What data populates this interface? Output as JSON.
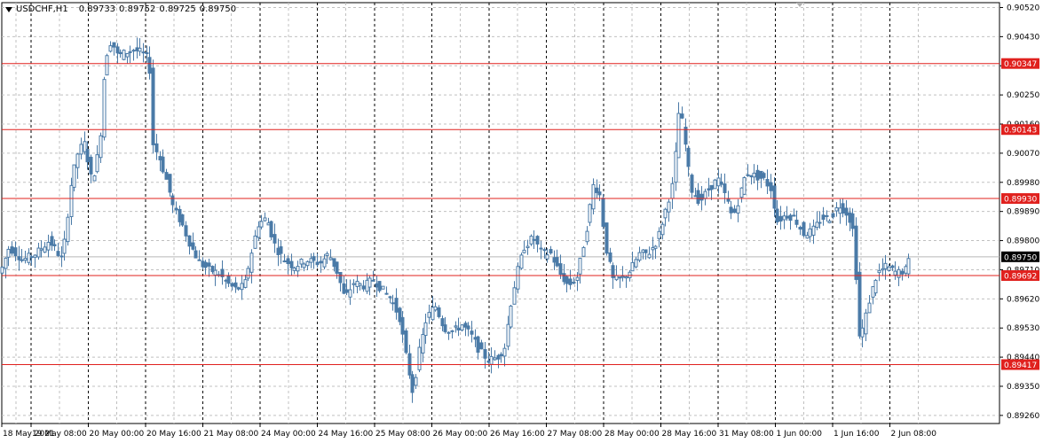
{
  "header": {
    "symbol": "USDCHF,H1",
    "open": "0.89733",
    "high": "0.89752",
    "low": "0.89725",
    "close": "0.89750"
  },
  "colors": {
    "candle": "#4a7aa7",
    "level_line": "#e0211e",
    "level_label_bg": "#e0211e",
    "current_price_bg": "#000000",
    "grid": "#c0c0c0",
    "vgrid": "#000000"
  },
  "chart_data": {
    "type": "candlestick",
    "ylim": [
      0.89235,
      0.90535
    ],
    "y_ticks": [
      "0.90520",
      "0.90430",
      "0.90340",
      "0.90250",
      "0.90160",
      "0.90070",
      "0.89980",
      "0.89890",
      "0.89800",
      "0.89710",
      "0.89620",
      "0.89530",
      "0.89440",
      "0.89350",
      "0.89260"
    ],
    "x_ticks": [
      "18 May 2021",
      "19 May 08:00",
      "20 May 00:00",
      "20 May 16:00",
      "21 May 08:00",
      "24 May 00:00",
      "24 May 16:00",
      "25 May 08:00",
      "26 May 00:00",
      "26 May 16:00",
      "27 May 08:00",
      "28 May 00:00",
      "28 May 16:00",
      "31 May 08:00",
      "1 Jun 00:00",
      "1 Jun 16:00",
      "2 Jun 08:00"
    ],
    "levels": [
      "0.90347",
      "0.90143",
      "0.89930",
      "0.89692",
      "0.89417"
    ],
    "current_price": "0.89750",
    "close_path": [
      [
        0,
        0.897
      ],
      [
        10,
        0.8978
      ],
      [
        25,
        0.8974
      ],
      [
        40,
        0.8976
      ],
      [
        55,
        0.898
      ],
      [
        70,
        0.8974
      ],
      [
        80,
        0.8998
      ],
      [
        88,
        0.9008
      ],
      [
        95,
        0.901
      ],
      [
        103,
        0.8998
      ],
      [
        112,
        0.9009
      ],
      [
        118,
        0.9036
      ],
      [
        125,
        0.9042
      ],
      [
        132,
        0.9037
      ],
      [
        140,
        0.9038
      ],
      [
        150,
        0.9039
      ],
      [
        160,
        0.9038
      ],
      [
        168,
        0.9036
      ],
      [
        172,
        0.901
      ],
      [
        180,
        0.9005
      ],
      [
        188,
        0.8998
      ],
      [
        195,
        0.899
      ],
      [
        205,
        0.8985
      ],
      [
        215,
        0.8978
      ],
      [
        225,
        0.8973
      ],
      [
        235,
        0.8971
      ],
      [
        245,
        0.897
      ],
      [
        255,
        0.8967
      ],
      [
        265,
        0.8965
      ],
      [
        275,
        0.8966
      ],
      [
        282,
        0.8975
      ],
      [
        290,
        0.8985
      ],
      [
        300,
        0.8987
      ],
      [
        310,
        0.8978
      ],
      [
        320,
        0.8974
      ],
      [
        330,
        0.8972
      ],
      [
        345,
        0.8974
      ],
      [
        360,
        0.8973
      ],
      [
        370,
        0.8976
      ],
      [
        380,
        0.897
      ],
      [
        388,
        0.8962
      ],
      [
        398,
        0.8967
      ],
      [
        410,
        0.8966
      ],
      [
        420,
        0.8968
      ],
      [
        430,
        0.8965
      ],
      [
        440,
        0.8962
      ],
      [
        450,
        0.8956
      ],
      [
        458,
        0.8943
      ],
      [
        465,
        0.8933
      ],
      [
        472,
        0.8946
      ],
      [
        480,
        0.8956
      ],
      [
        490,
        0.896
      ],
      [
        500,
        0.8953
      ],
      [
        510,
        0.8952
      ],
      [
        520,
        0.8954
      ],
      [
        530,
        0.8951
      ],
      [
        540,
        0.8946
      ],
      [
        550,
        0.8943
      ],
      [
        560,
        0.8944
      ],
      [
        568,
        0.8947
      ],
      [
        575,
        0.896
      ],
      [
        582,
        0.897
      ],
      [
        590,
        0.8978
      ],
      [
        600,
        0.8981
      ],
      [
        610,
        0.8976
      ],
      [
        620,
        0.8976
      ],
      [
        630,
        0.897
      ],
      [
        640,
        0.8966
      ],
      [
        650,
        0.8969
      ],
      [
        660,
        0.8983
      ],
      [
        668,
        0.8997
      ],
      [
        675,
        0.8995
      ],
      [
        682,
        0.8978
      ],
      [
        690,
        0.8968
      ],
      [
        700,
        0.8968
      ],
      [
        710,
        0.8971
      ],
      [
        720,
        0.8976
      ],
      [
        730,
        0.8976
      ],
      [
        740,
        0.898
      ],
      [
        750,
        0.899
      ],
      [
        758,
        0.8998
      ],
      [
        765,
        0.9022
      ],
      [
        770,
        0.9013
      ],
      [
        778,
        0.8996
      ],
      [
        788,
        0.8992
      ],
      [
        798,
        0.8996
      ],
      [
        808,
        0.8999
      ],
      [
        818,
        0.8993
      ],
      [
        825,
        0.8987
      ],
      [
        832,
        0.8993
      ],
      [
        840,
        0.9001
      ],
      [
        850,
        0.9
      ],
      [
        860,
        0.8999
      ],
      [
        868,
        0.8996
      ],
      [
        875,
        0.8986
      ],
      [
        885,
        0.8988
      ],
      [
        895,
        0.8987
      ],
      [
        905,
        0.8982
      ],
      [
        915,
        0.8983
      ],
      [
        925,
        0.8987
      ],
      [
        935,
        0.8987
      ],
      [
        945,
        0.8991
      ],
      [
        955,
        0.8988
      ],
      [
        962,
        0.8982
      ],
      [
        967,
        0.895
      ],
      [
        972,
        0.8953
      ],
      [
        980,
        0.8963
      ],
      [
        988,
        0.897
      ],
      [
        998,
        0.8972
      ],
      [
        1010,
        0.897
      ],
      [
        1020,
        0.8971
      ],
      [
        1025,
        0.8975
      ]
    ]
  }
}
